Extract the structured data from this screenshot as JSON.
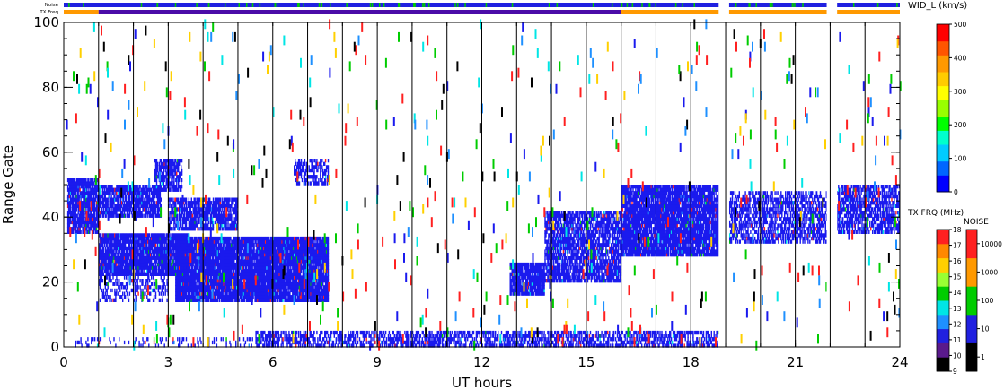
{
  "chart_data": {
    "type": "heatmap",
    "xlabel": "UT hours",
    "ylabel": "Range Gate",
    "xlim": [
      0,
      24
    ],
    "ylim": [
      0,
      100
    ],
    "x_ticks": [
      "0",
      "3",
      "6",
      "9",
      "12",
      "15",
      "18",
      "21",
      "24"
    ],
    "y_ticks": [
      "0",
      "20",
      "40",
      "60",
      "80",
      "100"
    ],
    "grid": "vertical lines every hour",
    "status_bars": {
      "noise_label": "Noise",
      "txfreq_label": "TX Freq",
      "noise_color": "#2020e0",
      "txfreq_segments": [
        {
          "from": 0,
          "to": 1,
          "color": "#ff9900"
        },
        {
          "from": 1,
          "to": 16,
          "color": "#4b0ca8"
        },
        {
          "from": 16,
          "to": 18.8,
          "color": "#ff9900"
        },
        {
          "from": 19.1,
          "to": 21.9,
          "color": "#ff9900"
        },
        {
          "from": 22.2,
          "to": 24,
          "color": "#ff9900"
        }
      ],
      "gaps": [
        [
          18.8,
          19.1
        ],
        [
          21.9,
          22.2
        ]
      ]
    },
    "colorbars": {
      "width": {
        "title": "WID_L (km/s)",
        "ticks": [
          "0",
          "100",
          "200",
          "300",
          "400",
          "500"
        ],
        "colors": [
          "#0000ff",
          "#0066ff",
          "#00ccff",
          "#00ffcc",
          "#00ff00",
          "#99ff00",
          "#ffff00",
          "#ffcc00",
          "#ff9900",
          "#ff5500",
          "#ff0000"
        ]
      },
      "txfreq": {
        "title": "TX FRQ (MHz)",
        "ticks": [
          "9",
          "10",
          "11",
          "12",
          "13",
          "14",
          "15",
          "16",
          "17",
          "18"
        ],
        "colors": [
          "#000000",
          "#5a1a8c",
          "#2020e0",
          "#1e90ff",
          "#00e5e5",
          "#00cc00",
          "#99ff33",
          "#ffd000",
          "#ff8800",
          "#ff2020"
        ]
      },
      "noise": {
        "title": "NOISE",
        "ticks": [
          "1",
          "10",
          "100",
          "1000",
          "10000"
        ],
        "colors": [
          "#000000",
          "#2020e0",
          "#00cc00",
          "#ff9900",
          "#ff2020"
        ]
      }
    },
    "echo_regions": [
      {
        "name": "",
        "t0": 0.1,
        "t1": 1.0,
        "g0": 35,
        "g1": 52,
        "color": "#1a1aee",
        "density": 0.85
      },
      {
        "name": "",
        "t0": 1.0,
        "t1": 2.8,
        "g0": 40,
        "g1": 50,
        "color": "#1a1aee",
        "density": 0.8
      },
      {
        "name": "",
        "t0": 1.0,
        "t1": 3.6,
        "g0": 22,
        "g1": 35,
        "color": "#1a1aee",
        "density": 0.92
      },
      {
        "name": "",
        "t0": 2.6,
        "t1": 3.4,
        "g0": 48,
        "g1": 58,
        "color": "#1a1aee",
        "density": 0.7
      },
      {
        "name": "",
        "t0": 3.0,
        "t1": 5.0,
        "g0": 36,
        "g1": 46,
        "color": "#1a1aee",
        "density": 0.75
      },
      {
        "name": "",
        "t0": 3.2,
        "t1": 7.6,
        "g0": 14,
        "g1": 34,
        "color": "#1a1aee",
        "density": 0.95
      },
      {
        "name": "",
        "t0": 1.0,
        "t1": 3.0,
        "g0": 14,
        "g1": 22,
        "color": "#1a1aee",
        "density": 0.35
      },
      {
        "name": "",
        "t0": 6.6,
        "t1": 7.6,
        "g0": 50,
        "g1": 58,
        "color": "#1a1aee",
        "density": 0.5
      },
      {
        "name": "",
        "t0": 12.8,
        "t1": 13.8,
        "g0": 16,
        "g1": 26,
        "color": "#1a1aee",
        "density": 0.9
      },
      {
        "name": "",
        "t0": 13.8,
        "t1": 16.0,
        "g0": 20,
        "g1": 42,
        "color": "#1a1aee",
        "density": 0.75
      },
      {
        "name": "",
        "t0": 16.0,
        "t1": 18.8,
        "g0": 28,
        "g1": 50,
        "color": "#1a1aee",
        "density": 0.9
      },
      {
        "name": "",
        "t0": 19.1,
        "t1": 21.9,
        "g0": 32,
        "g1": 48,
        "color": "#1a1aee",
        "density": 0.55
      },
      {
        "name": "",
        "t0": 22.2,
        "t1": 24.0,
        "g0": 35,
        "g1": 50,
        "color": "#1a1aee",
        "density": 0.65
      },
      {
        "name": "",
        "t0": 5.5,
        "t1": 18.8,
        "g0": 0,
        "g1": 5,
        "color": "#1a1aee",
        "density": 0.55
      },
      {
        "name": "",
        "t0": 0.3,
        "t1": 5.5,
        "g0": 0,
        "g1": 3,
        "color": "#1a1aee",
        "density": 0.15
      }
    ]
  }
}
